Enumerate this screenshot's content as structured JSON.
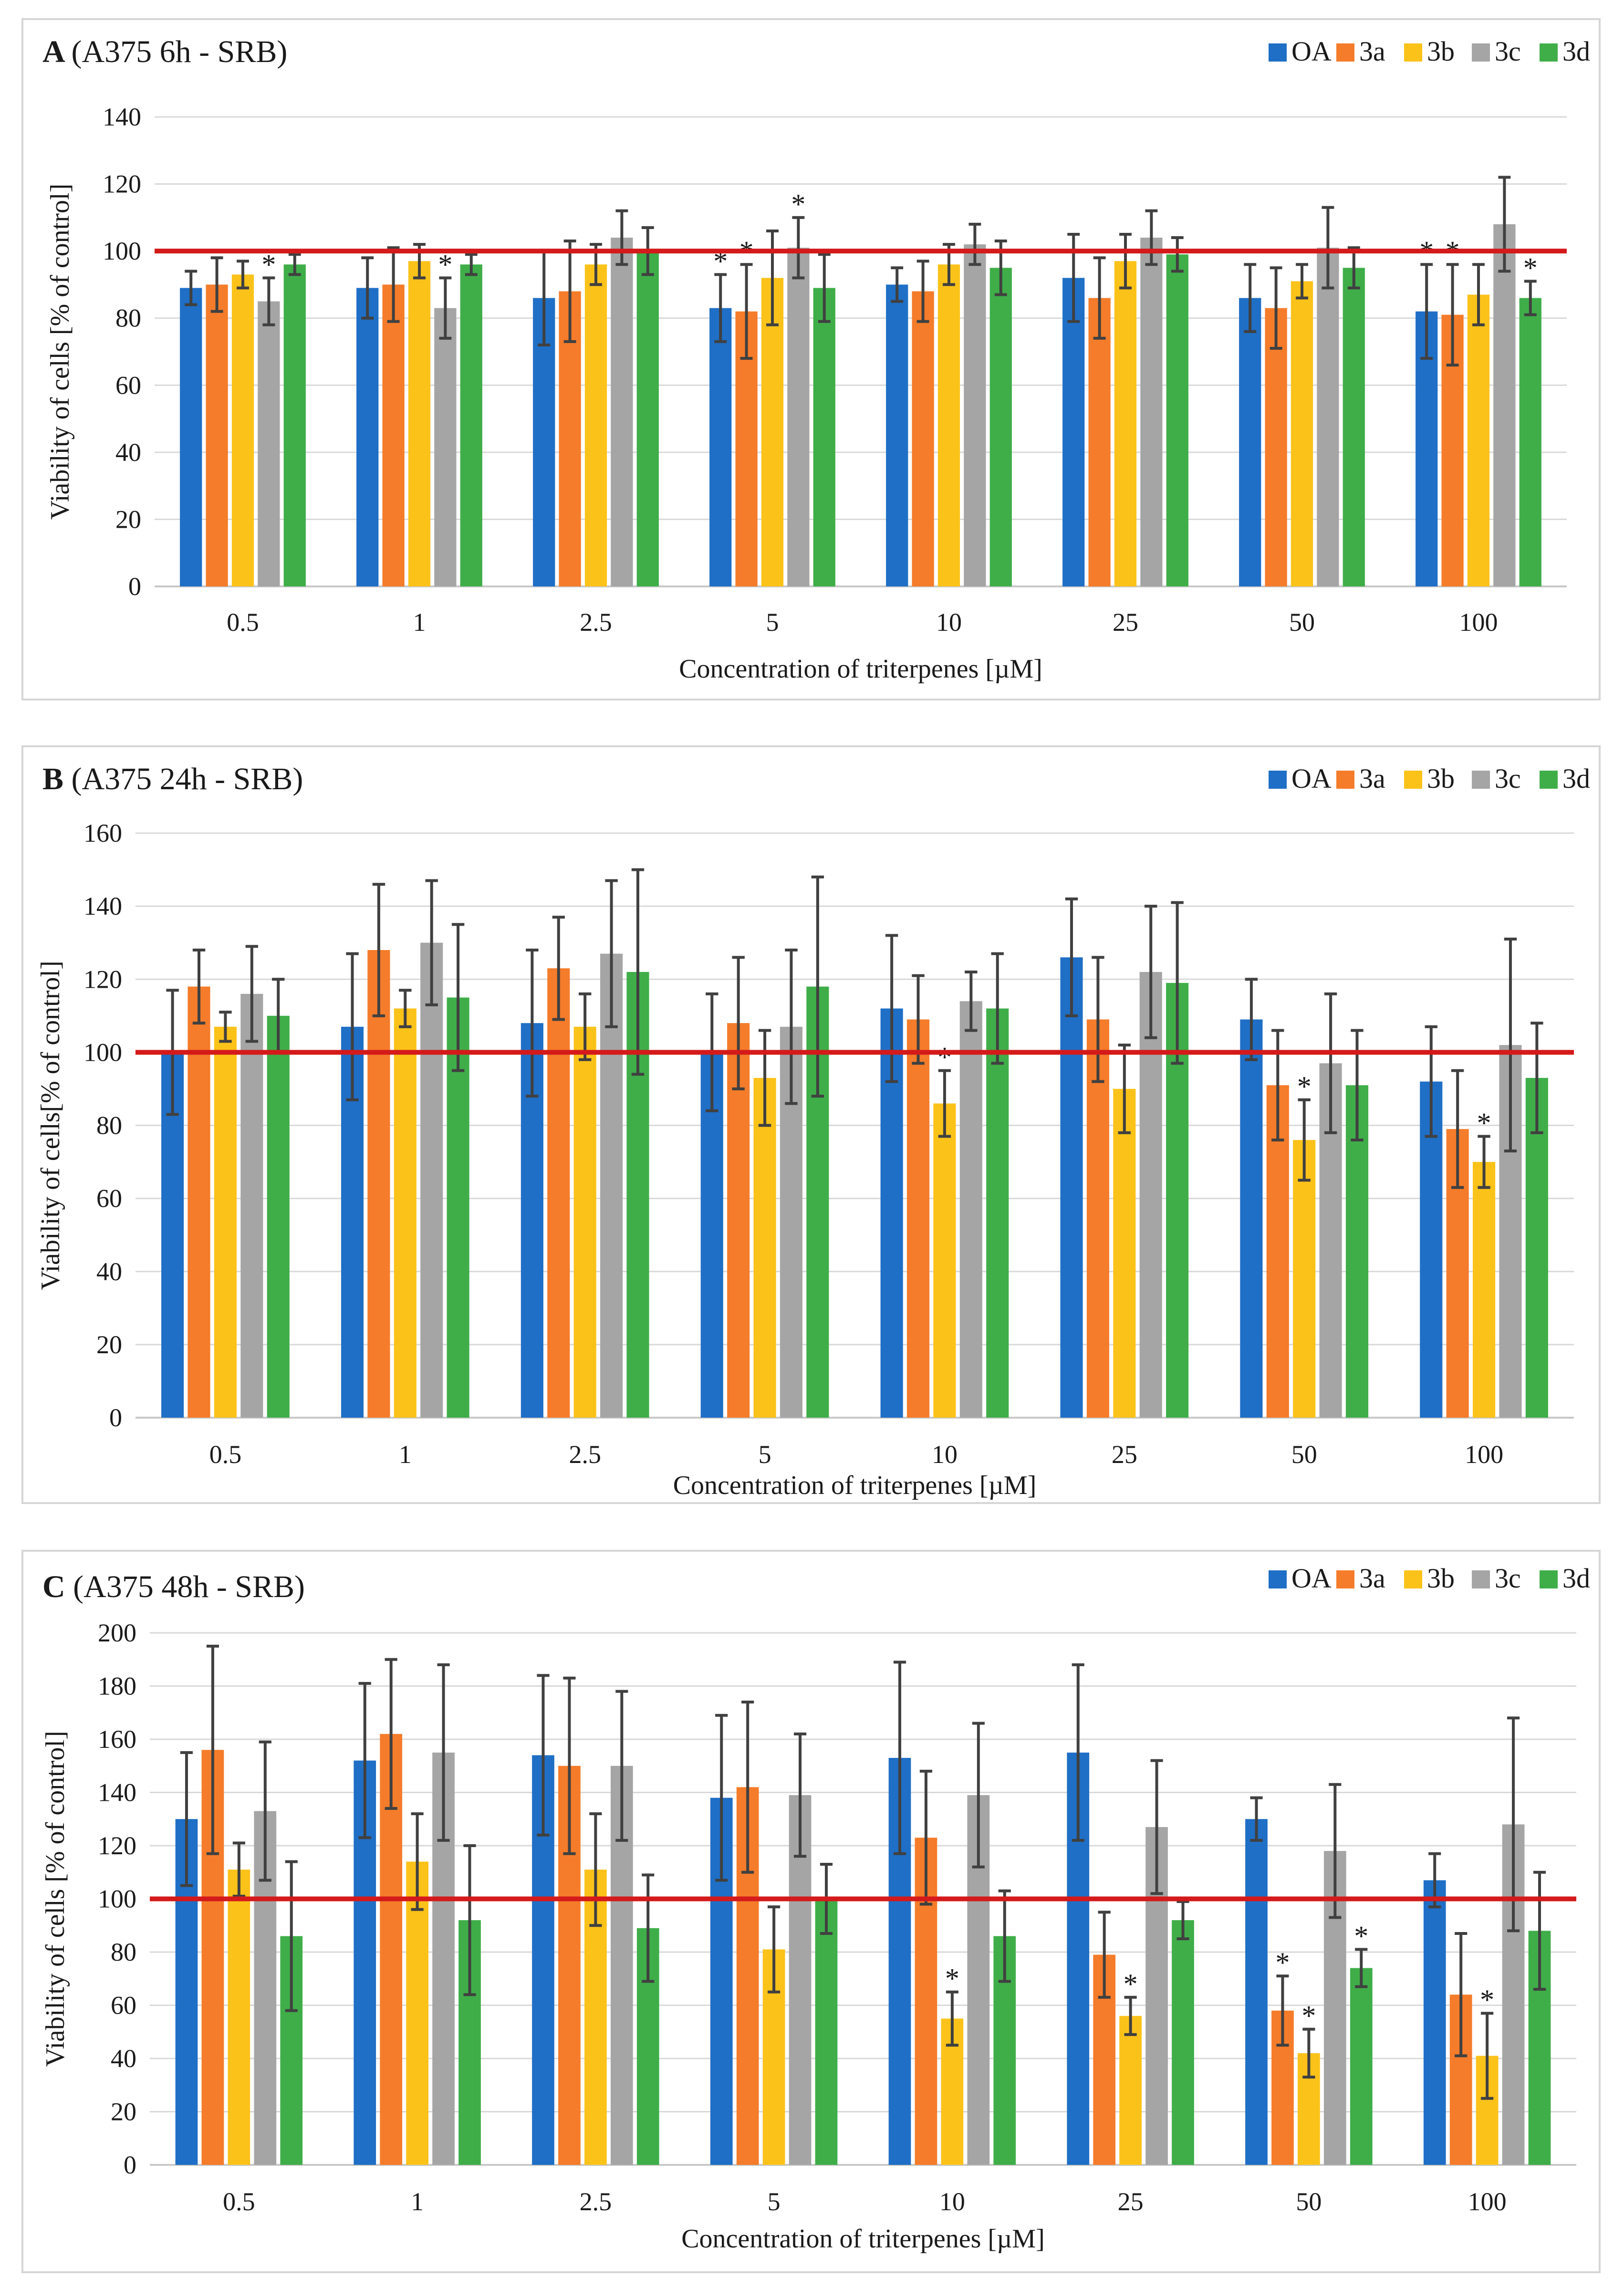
{
  "legend": {
    "series": [
      {
        "name": "OA",
        "color": "#1f6fc6"
      },
      {
        "name": "3a",
        "color": "#f57c2a"
      },
      {
        "name": "3b",
        "color": "#fbc21a"
      },
      {
        "name": "3c",
        "color": "#a5a5a5"
      },
      {
        "name": "3d",
        "color": "#3fae49"
      }
    ]
  },
  "reference_line": {
    "value": 100,
    "color": "#d41a1a"
  },
  "chart_data": [
    {
      "type": "bar",
      "letter": "A",
      "title": "(A375 6h - SRB)",
      "xlabel": "Concentration of triterpenes [µM]",
      "ylabel": "Viability of cells [% of control]",
      "ylim": [
        0,
        140
      ],
      "ytick_step": 20,
      "yticks": [
        "0",
        "20",
        "40",
        "60",
        "80",
        "100",
        "120",
        "140"
      ],
      "categories": [
        "0.5",
        "1",
        "2.5",
        "5",
        "10",
        "25",
        "50",
        "100"
      ],
      "series": [
        {
          "name": "OA",
          "values": [
            89,
            89,
            86,
            83,
            90,
            92,
            86,
            82
          ],
          "errors": [
            5,
            9,
            14,
            10,
            5,
            13,
            10,
            14
          ],
          "significant": [
            false,
            false,
            false,
            true,
            false,
            false,
            false,
            true
          ]
        },
        {
          "name": "3a",
          "values": [
            90,
            90,
            88,
            82,
            88,
            86,
            83,
            81
          ],
          "errors": [
            8,
            11,
            15,
            14,
            9,
            12,
            12,
            15
          ],
          "significant": [
            false,
            false,
            false,
            true,
            false,
            false,
            false,
            true
          ]
        },
        {
          "name": "3b",
          "values": [
            93,
            97,
            96,
            92,
            96,
            97,
            91,
            87
          ],
          "errors": [
            4,
            5,
            6,
            14,
            6,
            8,
            5,
            9
          ],
          "significant": [
            false,
            false,
            false,
            false,
            false,
            false,
            false,
            false
          ]
        },
        {
          "name": "3c",
          "values": [
            85,
            83,
            104,
            101,
            102,
            104,
            101,
            108
          ],
          "errors": [
            7,
            9,
            8,
            9,
            6,
            8,
            12,
            14
          ],
          "significant": [
            true,
            true,
            false,
            true,
            false,
            false,
            false,
            false
          ]
        },
        {
          "name": "3d",
          "values": [
            96,
            96,
            100,
            89,
            95,
            99,
            95,
            86
          ],
          "errors": [
            3,
            3,
            7,
            10,
            8,
            5,
            6,
            5
          ],
          "significant": [
            false,
            false,
            false,
            false,
            false,
            false,
            false,
            true
          ]
        }
      ]
    },
    {
      "type": "bar",
      "letter": "B",
      "title": "(A375 24h - SRB)",
      "xlabel": "Concentration of triterpenes [µM]",
      "ylabel": "Viability of cells[% of control]",
      "ylim": [
        0,
        160
      ],
      "ytick_step": 20,
      "yticks": [
        "0",
        "20",
        "40",
        "60",
        "80",
        "100",
        "120",
        "140",
        "160"
      ],
      "categories": [
        "0.5",
        "1",
        "2.5",
        "5",
        "10",
        "25",
        "50",
        "100"
      ],
      "series": [
        {
          "name": "OA",
          "values": [
            100,
            107,
            108,
            100,
            112,
            126,
            109,
            92
          ],
          "errors": [
            17,
            20,
            20,
            16,
            20,
            16,
            11,
            15
          ],
          "significant": [
            false,
            false,
            false,
            false,
            false,
            false,
            false,
            false
          ]
        },
        {
          "name": "3a",
          "values": [
            118,
            128,
            123,
            108,
            109,
            109,
            91,
            79
          ],
          "errors": [
            10,
            18,
            14,
            18,
            12,
            17,
            15,
            16
          ],
          "significant": [
            false,
            false,
            false,
            false,
            false,
            false,
            false,
            false
          ]
        },
        {
          "name": "3b",
          "values": [
            107,
            112,
            107,
            93,
            86,
            90,
            76,
            70
          ],
          "errors": [
            4,
            5,
            9,
            13,
            9,
            12,
            11,
            7
          ],
          "significant": [
            false,
            false,
            false,
            false,
            true,
            false,
            true,
            true
          ]
        },
        {
          "name": "3c",
          "values": [
            116,
            130,
            127,
            107,
            114,
            122,
            97,
            102
          ],
          "errors": [
            13,
            17,
            20,
            21,
            8,
            18,
            19,
            29
          ],
          "significant": [
            false,
            false,
            false,
            false,
            false,
            false,
            false,
            false
          ]
        },
        {
          "name": "3d",
          "values": [
            110,
            115,
            122,
            118,
            112,
            119,
            91,
            93
          ],
          "errors": [
            10,
            20,
            28,
            30,
            15,
            22,
            15,
            15
          ],
          "significant": [
            false,
            false,
            false,
            false,
            false,
            false,
            false,
            false
          ]
        }
      ]
    },
    {
      "type": "bar",
      "letter": "C",
      "title": "(A375 48h - SRB)",
      "xlabel": "Concentration of triterpenes [µM]",
      "ylabel": "Viability of cells [% of control]",
      "ylim": [
        0,
        200
      ],
      "ytick_step": 20,
      "yticks": [
        "0",
        "20",
        "40",
        "60",
        "80",
        "100",
        "120",
        "140",
        "160",
        "180",
        "200"
      ],
      "categories": [
        "0.5",
        "1",
        "2.5",
        "5",
        "10",
        "25",
        "50",
        "100"
      ],
      "series": [
        {
          "name": "OA",
          "values": [
            130,
            152,
            154,
            138,
            153,
            155,
            130,
            107
          ],
          "errors": [
            25,
            29,
            30,
            31,
            36,
            33,
            8,
            10
          ],
          "significant": [
            false,
            false,
            false,
            false,
            false,
            false,
            false,
            false
          ]
        },
        {
          "name": "3a",
          "values": [
            156,
            162,
            150,
            142,
            123,
            79,
            58,
            64
          ],
          "errors": [
            39,
            28,
            33,
            32,
            25,
            16,
            13,
            23
          ],
          "significant": [
            false,
            false,
            false,
            false,
            false,
            false,
            true,
            false
          ]
        },
        {
          "name": "3b",
          "values": [
            111,
            114,
            111,
            81,
            55,
            56,
            42,
            41
          ],
          "errors": [
            10,
            18,
            21,
            16,
            10,
            7,
            9,
            16
          ],
          "significant": [
            false,
            false,
            false,
            false,
            true,
            true,
            true,
            true
          ]
        },
        {
          "name": "3c",
          "values": [
            133,
            155,
            150,
            139,
            139,
            127,
            118,
            128
          ],
          "errors": [
            26,
            33,
            28,
            23,
            27,
            25,
            25,
            40
          ],
          "significant": [
            false,
            false,
            false,
            false,
            false,
            false,
            false,
            false
          ]
        },
        {
          "name": "3d",
          "values": [
            86,
            92,
            89,
            100,
            86,
            92,
            74,
            88
          ],
          "errors": [
            28,
            28,
            20,
            13,
            17,
            7,
            7,
            22
          ],
          "significant": [
            false,
            false,
            false,
            false,
            false,
            false,
            true,
            false
          ]
        }
      ]
    }
  ]
}
